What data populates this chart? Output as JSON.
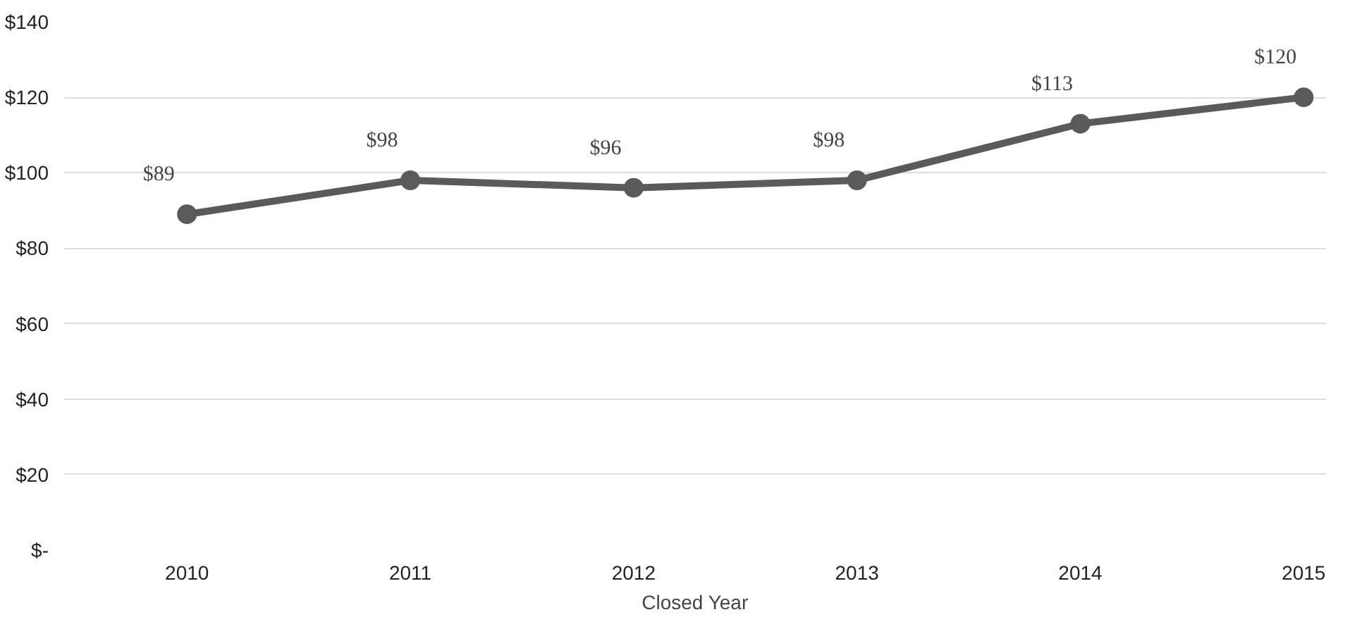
{
  "chart_data": {
    "type": "line",
    "xlabel": "Closed Year",
    "categories": [
      "2010",
      "2011",
      "2012",
      "2013",
      "2014",
      "2015"
    ],
    "series": [
      {
        "color": "#5a5a5a",
        "values": [
          89,
          98,
          96,
          98,
          113,
          120
        ],
        "value_labels": [
          "$89",
          "$98",
          "$96",
          "$98",
          "$113",
          "$120"
        ]
      }
    ],
    "ylim": [
      0,
      140
    ],
    "yticks": [
      {
        "value": 0,
        "label": "$-"
      },
      {
        "value": 20,
        "label": "$20"
      },
      {
        "value": 40,
        "label": "$40"
      },
      {
        "value": 60,
        "label": "$60"
      },
      {
        "value": 80,
        "label": "$80"
      },
      {
        "value": 100,
        "label": "$100"
      },
      {
        "value": 120,
        "label": "$120"
      },
      {
        "value": 140,
        "label": "$140"
      }
    ],
    "grid": "y",
    "marker": "circle",
    "line_style": "solid"
  }
}
